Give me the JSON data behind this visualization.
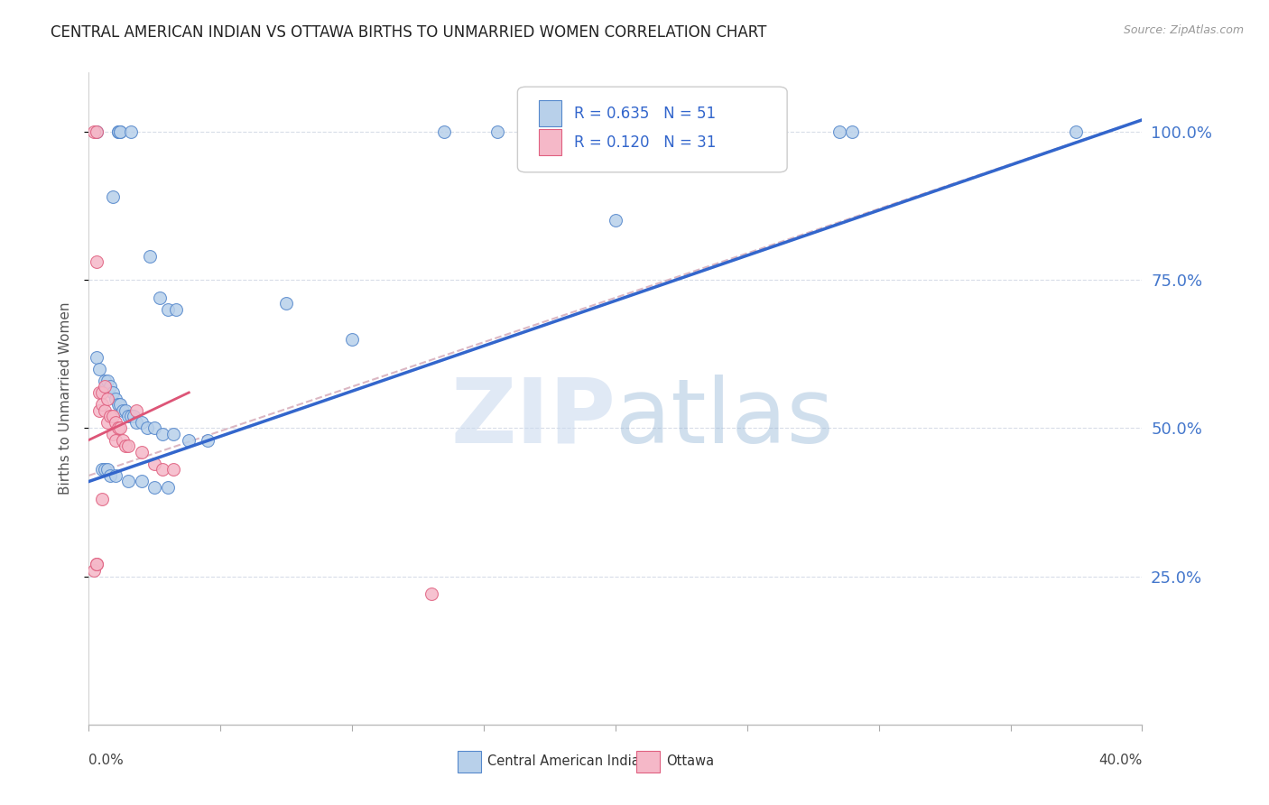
{
  "title": "CENTRAL AMERICAN INDIAN VS OTTAWA BIRTHS TO UNMARRIED WOMEN CORRELATION CHART",
  "source": "Source: ZipAtlas.com",
  "ylabel": "Births to Unmarried Women",
  "watermark_zip": "ZIP",
  "watermark_atlas": "atlas",
  "legend_blue_r": "0.635",
  "legend_blue_n": "51",
  "legend_pink_r": "0.120",
  "legend_pink_n": "31",
  "legend_blue_label": "Central American Indians",
  "legend_pink_label": "Ottawa",
  "blue_fill": "#b8d0ea",
  "blue_edge": "#5588cc",
  "pink_fill": "#f5b8c8",
  "pink_edge": "#e06080",
  "line_blue_color": "#3366cc",
  "line_pink_color": "#dd5577",
  "line_dashed_color": "#cc99aa",
  "grid_color": "#d8dde8",
  "xmin": 0.0,
  "xmax": 0.4,
  "ymin": 0.0,
  "ymax": 1.1,
  "blue_x": [
    0.003,
    0.011,
    0.011,
    0.012,
    0.012,
    0.016,
    0.009,
    0.023,
    0.027,
    0.03,
    0.033,
    0.075,
    0.1,
    0.155,
    0.175,
    0.003,
    0.004,
    0.006,
    0.007,
    0.008,
    0.009,
    0.01,
    0.011,
    0.012,
    0.013,
    0.014,
    0.015,
    0.016,
    0.017,
    0.018,
    0.02,
    0.022,
    0.025,
    0.028,
    0.032,
    0.038,
    0.045,
    0.005,
    0.006,
    0.007,
    0.008,
    0.01,
    0.015,
    0.02,
    0.025,
    0.03,
    0.2,
    0.29,
    0.375,
    0.135,
    0.285
  ],
  "blue_y": [
    1.0,
    1.0,
    1.0,
    1.0,
    1.0,
    1.0,
    0.89,
    0.79,
    0.72,
    0.7,
    0.7,
    0.71,
    0.65,
    1.0,
    1.0,
    0.62,
    0.6,
    0.58,
    0.58,
    0.57,
    0.56,
    0.55,
    0.54,
    0.54,
    0.53,
    0.53,
    0.52,
    0.52,
    0.52,
    0.51,
    0.51,
    0.5,
    0.5,
    0.49,
    0.49,
    0.48,
    0.48,
    0.43,
    0.43,
    0.43,
    0.42,
    0.42,
    0.41,
    0.41,
    0.4,
    0.4,
    0.85,
    1.0,
    1.0,
    1.0,
    1.0
  ],
  "pink_x": [
    0.002,
    0.003,
    0.003,
    0.004,
    0.004,
    0.005,
    0.005,
    0.006,
    0.006,
    0.007,
    0.007,
    0.008,
    0.009,
    0.009,
    0.01,
    0.01,
    0.011,
    0.012,
    0.013,
    0.014,
    0.015,
    0.018,
    0.02,
    0.025,
    0.028,
    0.032,
    0.002,
    0.003,
    0.003,
    0.13,
    0.005
  ],
  "pink_y": [
    1.0,
    1.0,
    0.78,
    0.56,
    0.53,
    0.56,
    0.54,
    0.57,
    0.53,
    0.55,
    0.51,
    0.52,
    0.52,
    0.49,
    0.51,
    0.48,
    0.5,
    0.5,
    0.48,
    0.47,
    0.47,
    0.53,
    0.46,
    0.44,
    0.43,
    0.43,
    0.26,
    0.27,
    0.27,
    0.22,
    0.38
  ],
  "blue_line_x": [
    0.0,
    0.4
  ],
  "blue_line_y": [
    0.41,
    1.02
  ],
  "pink_line_x": [
    0.0,
    0.038
  ],
  "pink_line_y": [
    0.48,
    0.56
  ],
  "dashed_line_x": [
    0.0,
    0.4
  ],
  "dashed_line_y": [
    0.42,
    1.02
  ]
}
